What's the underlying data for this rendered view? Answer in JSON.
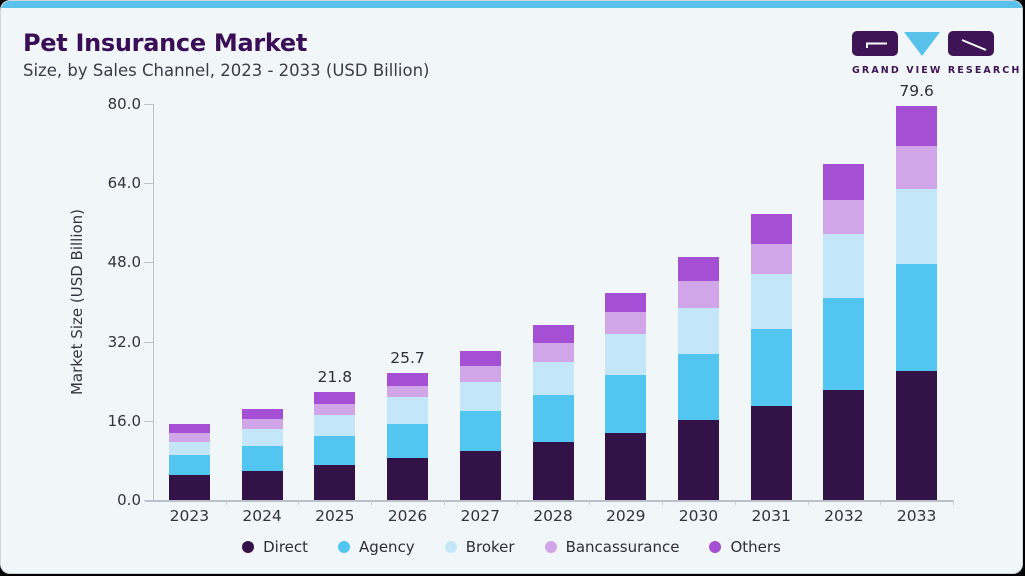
{
  "header": {
    "title": "Pet Insurance Market",
    "subtitle": "Size, by Sales Channel, 2023 - 2033 (USD Billion)",
    "logo_text": "GRAND VIEW RESEARCH"
  },
  "colors": {
    "accent_strip": "#58c2ea",
    "title_purple": "#3a0e56",
    "body_text": "#35353f",
    "axis_line": "#bcc3cd",
    "card_background": "#f1f6f9",
    "card_border": "#ccd6dd",
    "logo_purple": "#3e1456",
    "logo_triangle_blue": "#58c2ea"
  },
  "chart_data": {
    "type": "bar",
    "stacked": true,
    "title": "Pet Insurance Market Size, by Sales Channel, 2023 - 2033 (USD Billion)",
    "xlabel": "",
    "ylabel": "Market Size (USD Billion)",
    "ylim": [
      0,
      80
    ],
    "yticks": [
      0.0,
      16.0,
      32.0,
      48.0,
      64.0,
      80.0
    ],
    "grid": false,
    "legend_position": "bottom",
    "categories": [
      2023,
      2024,
      2025,
      2026,
      2027,
      2028,
      2029,
      2030,
      2031,
      2032,
      2033
    ],
    "series": [
      {
        "name": "Direct",
        "color": "#331247",
        "values": [
          5.0,
          5.9,
          7.0,
          8.4,
          9.8,
          11.7,
          13.5,
          16.2,
          18.9,
          22.2,
          26.0
        ]
      },
      {
        "name": "Agency",
        "color": "#53c5f1",
        "values": [
          4.0,
          5.0,
          6.0,
          6.9,
          8.2,
          9.6,
          11.7,
          13.2,
          15.6,
          18.6,
          21.7
        ]
      },
      {
        "name": "Broker",
        "color": "#c3e7f9",
        "values": [
          2.7,
          3.5,
          4.2,
          5.5,
          5.8,
          6.6,
          8.4,
          9.3,
          11.2,
          13.0,
          15.1
        ]
      },
      {
        "name": "Bancassurance",
        "color": "#d0a6e9",
        "values": [
          1.8,
          1.9,
          2.1,
          2.2,
          3.3,
          3.8,
          4.3,
          5.5,
          6.1,
          6.8,
          8.7
        ]
      },
      {
        "name": "Others",
        "color": "#a44fd4",
        "values": [
          1.9,
          2.0,
          2.5,
          2.7,
          3.0,
          3.6,
          4.0,
          4.9,
          6.0,
          7.3,
          8.1
        ]
      }
    ],
    "totals": [
      15.4,
      18.3,
      21.8,
      25.7,
      30.1,
      35.3,
      41.9,
      49.1,
      57.8,
      67.9,
      79.6
    ],
    "bar_labels": {
      "2025": "21.8",
      "2026": "25.7",
      "2033": "79.6"
    }
  }
}
